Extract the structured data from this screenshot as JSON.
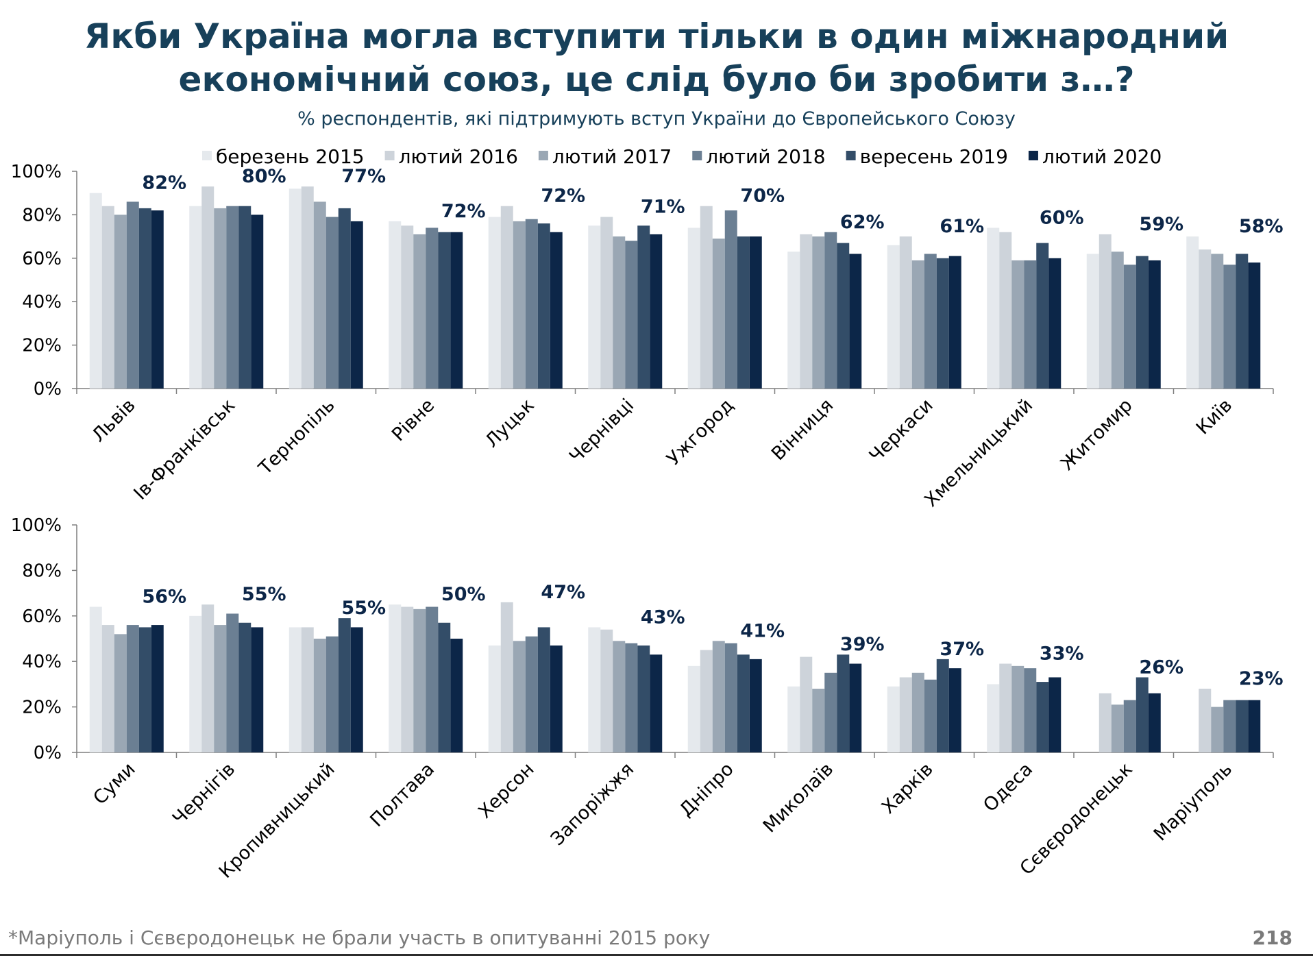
{
  "page": {
    "title_line1": "Якби Україна могла вступити тільки в один міжнародний",
    "title_line2": "економічний союз, це слід було би зробити з…?",
    "subtitle": "% респондентів, які підтримують вступ України до Європейського Союзу",
    "footnote": "*Маріуполь і Сєвєродонецьк не брали участь в опитуванні 2015 року",
    "page_number": "218"
  },
  "chart_data": [
    {
      "type": "bar",
      "title": "",
      "xlabel": "",
      "ylabel": "",
      "ylim": [
        0,
        100
      ],
      "yticks": [
        "0%",
        "20%",
        "40%",
        "60%",
        "80%",
        "100%"
      ],
      "grid": false,
      "legend_position": "top",
      "categories": [
        "Львів",
        "Ів-Франківськ",
        "Тернопіль",
        "Рівне",
        "Луцьк",
        "Чернівці",
        "Ужгород",
        "Вінниця",
        "Черкаси",
        "Хмельницький",
        "Житомир",
        "Київ"
      ],
      "series": [
        {
          "name": "березень 2015",
          "color": "#e5e9ed",
          "values": [
            90,
            84,
            92,
            77,
            79,
            75,
            74,
            63,
            66,
            74,
            62,
            70
          ]
        },
        {
          "name": "лютий 2016",
          "color": "#cdd3da",
          "values": [
            84,
            93,
            93,
            75,
            84,
            79,
            84,
            71,
            70,
            72,
            71,
            64
          ]
        },
        {
          "name": "лютий 2017",
          "color": "#9aa7b4",
          "values": [
            80,
            83,
            86,
            71,
            77,
            70,
            69,
            70,
            59,
            59,
            63,
            62
          ]
        },
        {
          "name": "лютий 2018",
          "color": "#6b7f93",
          "values": [
            86,
            84,
            79,
            74,
            78,
            68,
            82,
            72,
            62,
            59,
            57,
            57
          ]
        },
        {
          "name": "вересень 2019",
          "color": "#334d68",
          "values": [
            83,
            84,
            83,
            72,
            76,
            75,
            70,
            67,
            60,
            67,
            61,
            62
          ]
        },
        {
          "name": "лютий 2020",
          "color": "#0c2648",
          "values": [
            82,
            80,
            77,
            72,
            72,
            71,
            70,
            62,
            61,
            60,
            59,
            58
          ]
        }
      ],
      "value_labels": [
        "82%",
        "80%",
        "77%",
        "72%",
        "72%",
        "71%",
        "70%",
        "62%",
        "61%",
        "60%",
        "59%",
        "58%"
      ]
    },
    {
      "type": "bar",
      "title": "",
      "xlabel": "",
      "ylabel": "",
      "ylim": [
        0,
        100
      ],
      "yticks": [
        "0%",
        "20%",
        "40%",
        "60%",
        "80%",
        "100%"
      ],
      "grid": false,
      "legend_position": "top",
      "categories": [
        "Суми",
        "Чернігів",
        "Кропивницький",
        "Полтава",
        "Херсон",
        "Запоріжжя",
        "Дніпро",
        "Миколаїв",
        "Харків",
        "Одеса",
        "Сєвєродонецьк",
        "Маріуполь"
      ],
      "series": [
        {
          "name": "березень 2015",
          "color": "#e5e9ed",
          "values": [
            64,
            60,
            55,
            65,
            47,
            55,
            38,
            29,
            29,
            30,
            null,
            null
          ]
        },
        {
          "name": "лютий 2016",
          "color": "#cdd3da",
          "values": [
            56,
            65,
            55,
            64,
            66,
            54,
            45,
            42,
            33,
            39,
            26,
            28
          ]
        },
        {
          "name": "лютий 2017",
          "color": "#9aa7b4",
          "values": [
            52,
            56,
            50,
            63,
            49,
            49,
            49,
            28,
            35,
            38,
            21,
            20
          ]
        },
        {
          "name": "лютий 2018",
          "color": "#6b7f93",
          "values": [
            56,
            61,
            51,
            64,
            51,
            48,
            48,
            35,
            32,
            37,
            23,
            23
          ]
        },
        {
          "name": "вересень 2019",
          "color": "#334d68",
          "values": [
            55,
            57,
            59,
            57,
            55,
            47,
            43,
            43,
            41,
            31,
            33,
            23
          ]
        },
        {
          "name": "лютий 2020",
          "color": "#0c2648",
          "values": [
            56,
            55,
            55,
            50,
            47,
            43,
            41,
            39,
            37,
            33,
            26,
            23
          ]
        }
      ],
      "value_labels": [
        "56%",
        "55%",
        "55%",
        "50%",
        "47%",
        "43%",
        "41%",
        "39%",
        "37%",
        "33%",
        "26%",
        "23%"
      ]
    }
  ]
}
